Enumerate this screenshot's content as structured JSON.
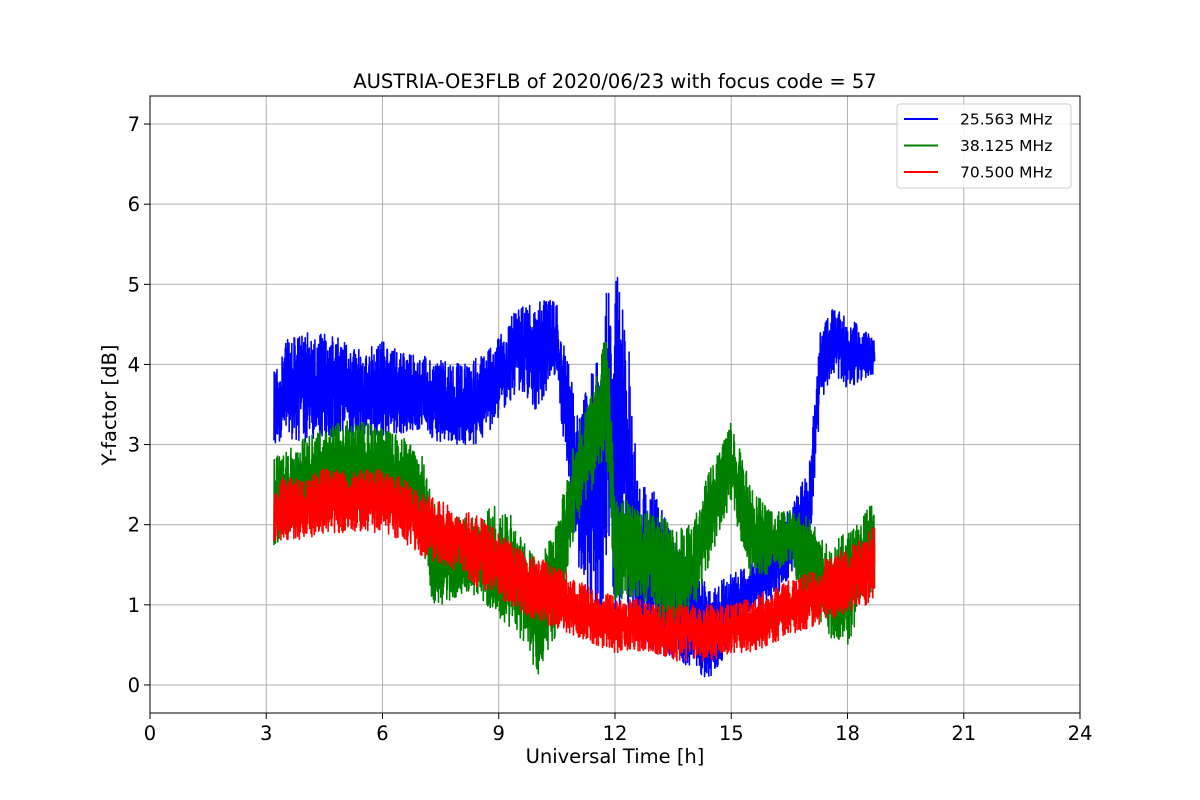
{
  "chart_data": {
    "type": "line",
    "title": "AUSTRIA-OE3FLB of 2020/06/23 with focus code = 57",
    "xlabel": "Universal Time [h]",
    "ylabel": "Y-factor [dB]",
    "xlim": [
      0,
      24
    ],
    "ylim": [
      -0.35,
      7.35
    ],
    "x_ticks": [
      0,
      3,
      6,
      9,
      12,
      15,
      18,
      21,
      24
    ],
    "y_ticks": [
      0,
      1,
      2,
      3,
      4,
      5,
      6,
      7
    ],
    "x_tick_labels": [
      "0",
      "3",
      "6",
      "9",
      "12",
      "15",
      "18",
      "21",
      "24"
    ],
    "y_tick_labels": [
      "0",
      "1",
      "2",
      "3",
      "4",
      "5",
      "6",
      "7"
    ],
    "grid": true,
    "legend_position": "upper right",
    "series": [
      {
        "name": "25.563 MHz",
        "color": "#0000ff",
        "x": [
          3.2,
          3.5,
          4.0,
          4.5,
          5.0,
          5.5,
          6.0,
          6.5,
          7.0,
          7.5,
          8.0,
          8.5,
          9.0,
          9.5,
          10.0,
          10.5,
          11.0,
          11.5,
          11.8,
          12.0,
          12.3,
          12.6,
          13.0,
          13.5,
          14.0,
          14.5,
          15.0,
          15.5,
          16.0,
          16.5,
          17.0,
          17.3,
          17.6,
          18.0,
          18.5,
          18.7
        ],
        "low": [
          2.9,
          3.1,
          3.0,
          3.1,
          3.1,
          3.1,
          3.1,
          3.1,
          3.2,
          3.0,
          3.0,
          3.0,
          3.3,
          3.7,
          3.4,
          3.8,
          1.5,
          0.6,
          1.2,
          0.8,
          1.0,
          0.4,
          0.4,
          0.3,
          0.2,
          0.0,
          0.6,
          0.9,
          1.0,
          1.3,
          1.6,
          3.5,
          3.9,
          3.7,
          3.8,
          3.9
        ],
        "high": [
          3.9,
          4.3,
          4.4,
          4.4,
          4.3,
          4.2,
          4.3,
          4.2,
          4.1,
          4.1,
          4.0,
          4.1,
          4.4,
          4.7,
          4.8,
          4.8,
          3.5,
          4.0,
          5.0,
          5.3,
          4.6,
          2.5,
          2.5,
          1.8,
          1.5,
          1.2,
          1.4,
          1.5,
          1.9,
          2.2,
          2.7,
          4.4,
          4.7,
          4.6,
          4.4,
          4.3
        ]
      },
      {
        "name": "38.125 MHz",
        "color": "#008000",
        "x": [
          3.2,
          3.5,
          4.0,
          4.5,
          5.0,
          5.5,
          6.0,
          6.5,
          7.0,
          7.3,
          7.5,
          8.0,
          8.5,
          9.0,
          9.5,
          10.0,
          10.5,
          11.0,
          11.5,
          11.8,
          12.0,
          12.3,
          12.6,
          13.0,
          13.5,
          14.0,
          14.5,
          15.0,
          15.5,
          16.0,
          16.5,
          17.0,
          17.5,
          18.0,
          18.5,
          18.7
        ],
        "low": [
          1.7,
          1.9,
          2.0,
          2.1,
          2.2,
          2.2,
          2.2,
          2.1,
          1.8,
          1.0,
          1.0,
          1.1,
          1.1,
          0.8,
          0.6,
          0.1,
          0.6,
          2.0,
          2.5,
          2.8,
          1.0,
          1.1,
          1.1,
          0.9,
          0.6,
          0.9,
          1.6,
          2.3,
          1.3,
          1.4,
          1.5,
          0.9,
          0.6,
          0.5,
          1.1,
          1.2
        ],
        "high": [
          2.9,
          2.9,
          3.1,
          3.2,
          3.3,
          3.3,
          3.2,
          3.1,
          2.9,
          2.3,
          2.1,
          2.1,
          2.1,
          2.3,
          2.0,
          1.5,
          2.0,
          3.2,
          3.8,
          4.5,
          2.3,
          2.3,
          2.2,
          2.2,
          2.0,
          2.0,
          2.8,
          3.3,
          2.5,
          2.2,
          2.2,
          2.1,
          1.8,
          1.9,
          2.2,
          2.3
        ]
      },
      {
        "name": "70.500 MHz",
        "color": "#ff0000",
        "x": [
          3.2,
          3.5,
          4.0,
          4.5,
          5.0,
          5.5,
          6.0,
          6.5,
          7.0,
          7.5,
          8.0,
          8.5,
          9.0,
          9.5,
          10.0,
          10.5,
          11.0,
          11.5,
          12.0,
          12.5,
          13.0,
          13.5,
          14.0,
          14.5,
          15.0,
          15.5,
          16.0,
          16.5,
          17.0,
          17.5,
          18.0,
          18.5,
          18.7
        ],
        "low": [
          1.8,
          1.8,
          1.8,
          1.9,
          1.9,
          1.9,
          1.9,
          1.8,
          1.6,
          1.5,
          1.4,
          1.2,
          1.1,
          0.9,
          0.8,
          0.7,
          0.6,
          0.5,
          0.4,
          0.4,
          0.4,
          0.3,
          0.3,
          0.3,
          0.4,
          0.4,
          0.5,
          0.6,
          0.7,
          0.8,
          0.9,
          1.0,
          1.1
        ],
        "high": [
          2.6,
          2.6,
          2.6,
          2.7,
          2.7,
          2.7,
          2.7,
          2.6,
          2.4,
          2.3,
          2.2,
          2.1,
          1.9,
          1.7,
          1.6,
          1.5,
          1.3,
          1.2,
          1.1,
          1.1,
          1.0,
          1.0,
          1.0,
          1.0,
          1.0,
          1.1,
          1.2,
          1.3,
          1.4,
          1.6,
          1.7,
          1.9,
          2.0
        ]
      }
    ]
  }
}
